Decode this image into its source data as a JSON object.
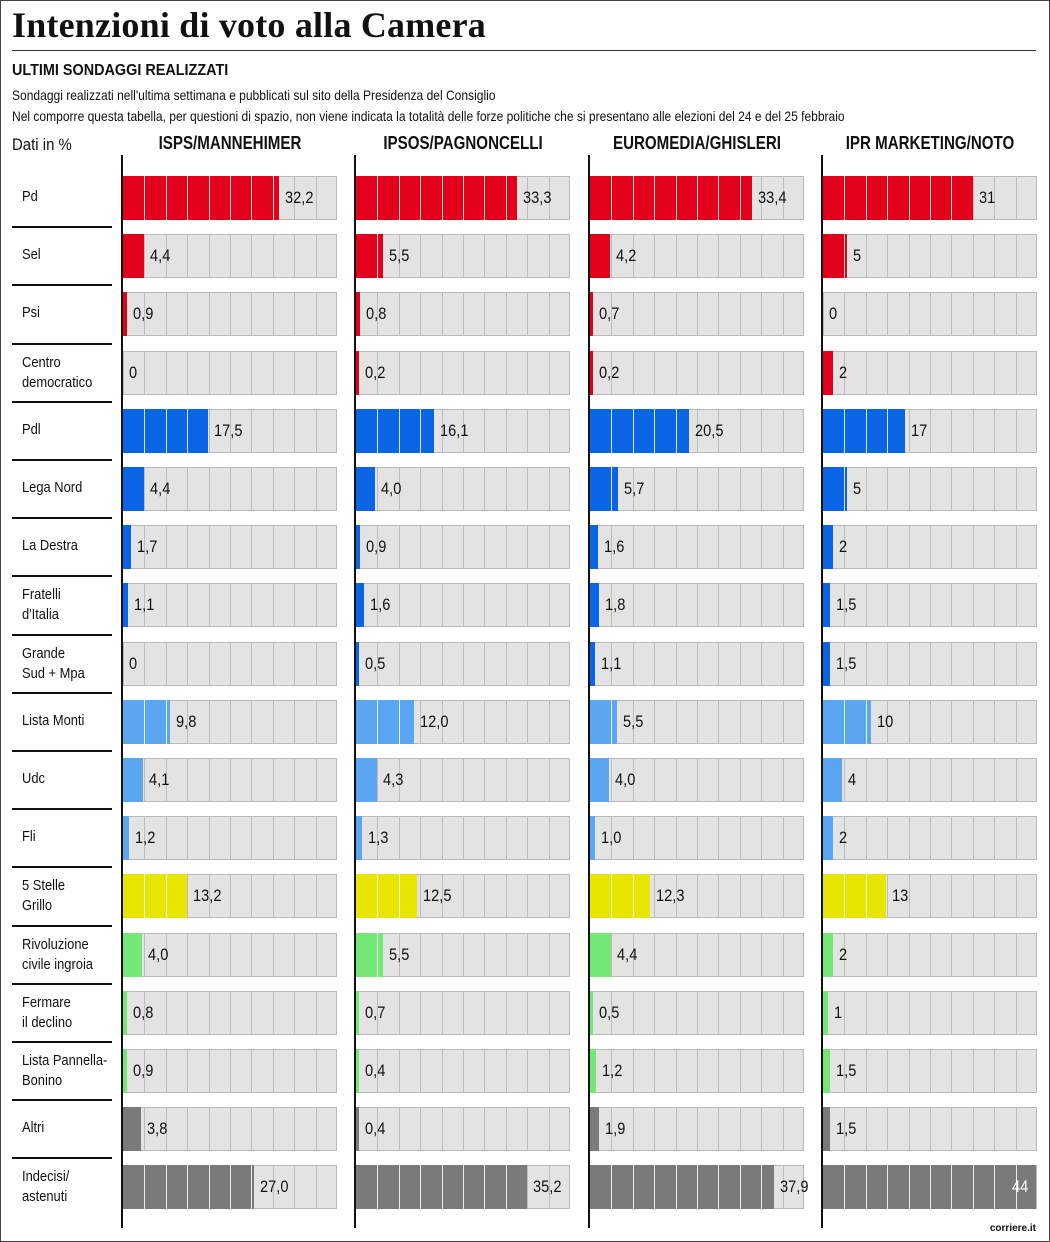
{
  "title": "Intenzioni di voto alla Camera",
  "subtitle": "ULTIMI SONDAGGI REALIZZATI",
  "note1": "Sondaggi realizzati nell'ultima settimana e pubblicati sul sito della Presidenza del Consiglio",
  "note2": "Nel comporre questa tabella, per questioni di spazio, non viene indicata la totalità delle forze politiche che si presentano alle elezioni del 24 e del 25 febbraio",
  "unit": "Dati in %",
  "credit": "corriere.it",
  "colors": {
    "red": "#e3001b",
    "blue": "#0a64e6",
    "lightblue": "#5aa6f0",
    "yellow": "#e6e600",
    "green": "#74e874",
    "gray": "#7a7a7a",
    "track": "#e3e3e3"
  },
  "chart_data": {
    "type": "bar",
    "orientation": "horizontal",
    "xlim": [
      0,
      45
    ],
    "categories": [
      "Pd",
      "Sel",
      "Psi",
      "Centro\ndemocratico",
      "Pdl",
      "Lega Nord",
      "La Destra",
      "Fratelli\nd'Italia",
      "Grande\nSud + Mpa",
      "Lista Monti",
      "Udc",
      "Fli",
      "5 Stelle\nGrillo",
      "Rivoluzione\ncivile ingroia",
      "Fermare\nil declino",
      "Lista Pannella-\nBonino",
      "Altri",
      "Indecisi/\nastenuti"
    ],
    "category_colors": [
      "red",
      "red",
      "red",
      "red",
      "blue",
      "blue",
      "blue",
      "blue",
      "blue",
      "lightblue",
      "lightblue",
      "lightblue",
      "yellow",
      "green",
      "green",
      "green",
      "gray",
      "gray"
    ],
    "series": [
      {
        "name": "ISPS/MANNEHIMER",
        "values": [
          32.2,
          4.4,
          0.9,
          0,
          17.5,
          4.4,
          1.7,
          1.1,
          0,
          9.8,
          4.1,
          1.2,
          13.2,
          4.0,
          0.8,
          0.9,
          3.8,
          27.0
        ],
        "labels": [
          "32,2",
          "4,4",
          "0,9",
          "0",
          "17,5",
          "4,4",
          "1,7",
          "1,1",
          "0",
          "9,8",
          "4,1",
          "1,2",
          "13,2",
          "4,0",
          "0,8",
          "0,9",
          "3,8",
          "27,0"
        ]
      },
      {
        "name": "IPSOS/PAGNONCELLI",
        "values": [
          33.3,
          5.5,
          0.8,
          0.2,
          16.1,
          4.0,
          0.9,
          1.6,
          0.5,
          12.0,
          4.3,
          1.3,
          12.5,
          5.5,
          0.7,
          0.4,
          0.4,
          35.2
        ],
        "labels": [
          "33,3",
          "5,5",
          "0,8",
          "0,2",
          "16,1",
          "4,0",
          "0,9",
          "1,6",
          "0,5",
          "12,0",
          "4,3",
          "1,3",
          "12,5",
          "5,5",
          "0,7",
          "0,4",
          "0,4",
          "35,2"
        ]
      },
      {
        "name": "EUROMEDIA/GHISLERI",
        "values": [
          33.4,
          4.2,
          0.7,
          0.2,
          20.5,
          5.7,
          1.6,
          1.8,
          1.1,
          5.5,
          4.0,
          1.0,
          12.3,
          4.4,
          0.5,
          1.2,
          1.9,
          37.9
        ],
        "labels": [
          "33,4",
          "4,2",
          "0,7",
          "0,2",
          "20,5",
          "5,7",
          "1,6",
          "1,8",
          "1,1",
          "5,5",
          "4,0",
          "1,0",
          "12,3",
          "4,4",
          "0,5",
          "1,2",
          "1,9",
          "37,9"
        ]
      },
      {
        "name": "IPR MARKETING/NOTO",
        "values": [
          31,
          5,
          0,
          2,
          17,
          5,
          2,
          1.5,
          1.5,
          10,
          4,
          2,
          13,
          2,
          1,
          1.5,
          1.5,
          44
        ],
        "labels": [
          "31",
          "5",
          "0",
          "2",
          "17",
          "5",
          "2",
          "1,5",
          "1,5",
          "10",
          "4",
          "2",
          "13",
          "2",
          "1",
          "1,5",
          "1,5",
          "44"
        ]
      }
    ]
  }
}
